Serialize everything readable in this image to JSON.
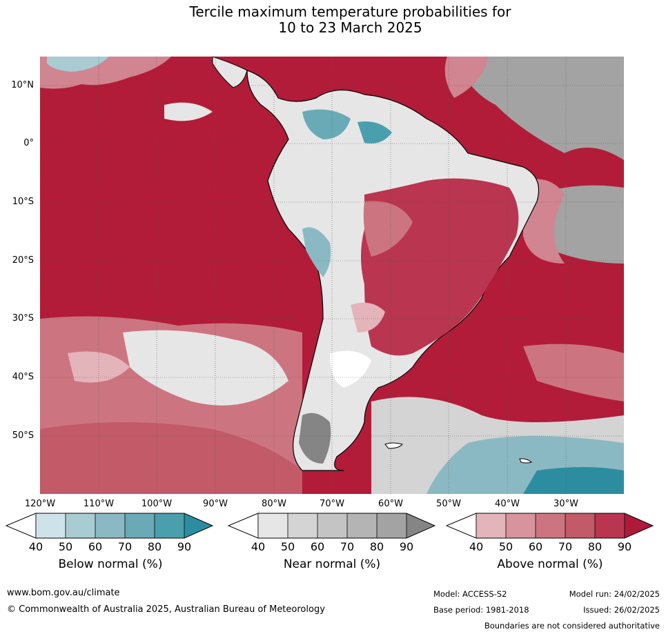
{
  "title_line1": "Tercile maximum temperature probabilities for",
  "title_line2": "10 to 23 March 2025",
  "lat_labels": [
    "10°N",
    "0°",
    "10°S",
    "20°S",
    "30°S",
    "40°S",
    "50°S"
  ],
  "lon_labels": [
    "120°W",
    "110°W",
    "100°W",
    "90°W",
    "80°W",
    "70°W",
    "60°W",
    "50°W",
    "40°W",
    "30°W"
  ],
  "colorbars": [
    {
      "title": "Below normal (%)",
      "ticks": [
        "40",
        "50",
        "60",
        "70",
        "80",
        "90"
      ],
      "colors": [
        "#cde3e9",
        "#a9cbd2",
        "#8bb9c3",
        "#69aab6",
        "#4a9fad",
        "#2c8da0"
      ]
    },
    {
      "title": "Near normal (%)",
      "ticks": [
        "40",
        "50",
        "60",
        "70",
        "80",
        "90"
      ],
      "colors": [
        "#e6e6e6",
        "#d4d4d4",
        "#c4c4c4",
        "#b4b4b4",
        "#a3a3a3",
        "#858585"
      ]
    },
    {
      "title": "Above normal (%)",
      "ticks": [
        "40",
        "50",
        "60",
        "70",
        "80",
        "90"
      ],
      "colors": [
        "#e4b4bb",
        "#d7949d",
        "#cc7580",
        "#c25a68",
        "#b93550",
        "#ae1a37"
      ]
    }
  ],
  "footer": {
    "website": "www.bom.gov.au/climate",
    "copyright": "© Commonwealth of Australia 2025, Australian Bureau of Meteorology",
    "model": "Model: ACCESS-S2",
    "base_period": "Base period: 1981-2018",
    "model_run": "Model run: 24/02/2025",
    "issued": "Issued: 26/02/2025",
    "disclaimer": "Boundaries are not considered authoritative"
  }
}
